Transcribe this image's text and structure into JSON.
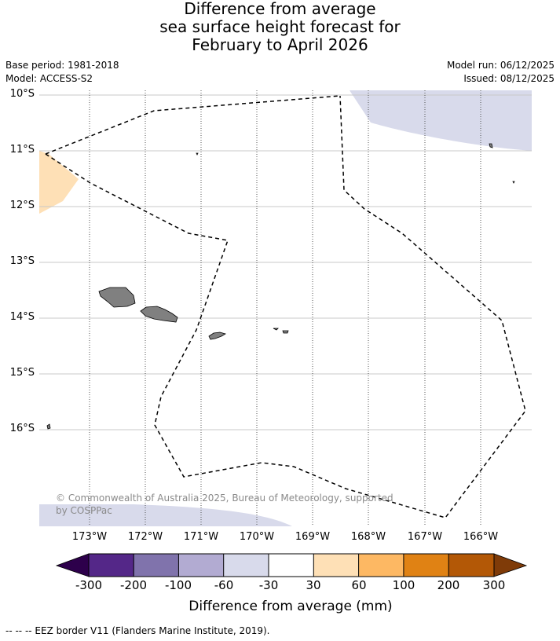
{
  "title": {
    "line1": "Difference from average",
    "line2": "sea surface height forecast for",
    "line3": "February to April 2026"
  },
  "meta": {
    "base_period": "Base period: 1981-2018",
    "model": "Model: ACCESS-S2",
    "model_run": "Model run: 06/12/2025",
    "issued": "Issued: 08/12/2025"
  },
  "map": {
    "lat_labels": [
      "10°S",
      "11°S",
      "12°S",
      "13°S",
      "14°S",
      "15°S",
      "16°S"
    ],
    "lon_labels": [
      "173°W",
      "172°W",
      "171°W",
      "170°W",
      "169°W",
      "168°W",
      "167°W",
      "166°W"
    ],
    "copyright_line1": "© Commonwealth of Australia 2025, Bureau of Meteorology, supported",
    "copyright_line2": "by COSPPac",
    "land_color": "#808080",
    "eez_color": "#000000"
  },
  "colorbar": {
    "tick_labels": [
      "-300",
      "-200",
      "-100",
      "-60",
      "-30",
      "30",
      "60",
      "100",
      "200",
      "300"
    ],
    "colors": [
      "#2d004b",
      "#542788",
      "#8073ac",
      "#b2abd2",
      "#d8daeb",
      "#ffffff",
      "#fee0b6",
      "#fdb863",
      "#e08214",
      "#b35806",
      "#7f3b08"
    ],
    "title": "Difference from average (mm)"
  },
  "footnote": "--  --  -- EEZ border V11 (Flanders Marine Institute, 2019)."
}
